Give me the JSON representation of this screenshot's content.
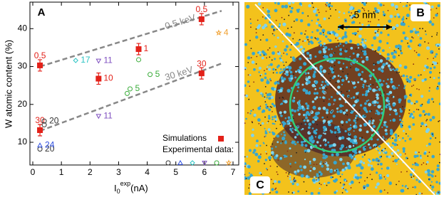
{
  "chart_data": {
    "type": "scatter",
    "panel_label": "A",
    "ylabel": "W atomic content (%)",
    "xlabel": {
      "base": "I",
      "sub": "0",
      "sup": "exp",
      "unit": "(nA)"
    },
    "xlim": [
      -0.1,
      7.2
    ],
    "ylim": [
      4,
      47
    ],
    "xticks": [
      0,
      1,
      2,
      3,
      4,
      5,
      6,
      7
    ],
    "yticks": [
      10,
      20,
      30,
      40
    ],
    "series": [
      {
        "name": "Simulations",
        "marker": "square",
        "filled": true,
        "color": "#e32119",
        "x": [
          0.25,
          0.25,
          2.3,
          3.7,
          5.9,
          5.9
        ],
        "y": [
          30.3,
          13.2,
          26.8,
          34.6,
          42.5,
          28.2
        ],
        "errors": [
          1.5,
          1.5,
          1.5,
          1.5,
          1.5,
          1.5
        ],
        "point_labels": [
          "0.5",
          "30",
          "10",
          "1",
          "0.5",
          "30"
        ]
      },
      {
        "marker": "circle",
        "color": "#333333",
        "x": [
          0.4,
          0.4,
          0.25
        ],
        "y": [
          15.6,
          14.6,
          8.2
        ],
        "point_labels": [
          "20",
          null,
          "20"
        ]
      },
      {
        "marker": "triangle-up",
        "color": "#2f4fe0",
        "x": [
          0.25
        ],
        "y": [
          9.2
        ],
        "point_labels": [
          "24"
        ]
      },
      {
        "marker": "diamond",
        "color": "#2cc4c4",
        "x": [
          1.5
        ],
        "y": [
          31.6
        ],
        "point_labels": [
          "17"
        ]
      },
      {
        "marker": "triangle-down",
        "color": "#7e4fc0",
        "x": [
          2.3,
          2.3
        ],
        "y": [
          31.5,
          16.9
        ],
        "point_labels": [
          "11",
          "11"
        ]
      },
      {
        "marker": "circle",
        "color": "#3aac3a",
        "x": [
          3.7,
          4.1,
          3.3,
          3.4
        ],
        "y": [
          31.8,
          27.9,
          22.9,
          24.1
        ],
        "point_labels": [
          null,
          "5",
          null,
          "5"
        ]
      },
      {
        "marker": "star",
        "color": "#f0a030",
        "x": [
          6.5
        ],
        "y": [
          38.9
        ],
        "point_labels": [
          "4"
        ]
      }
    ],
    "fit_lines": [
      {
        "label": "0.5 keV",
        "x": [
          0.25,
          6.6
        ],
        "y": [
          30,
          44.7
        ]
      },
      {
        "label": "30 keV",
        "x": [
          0.25,
          6.6
        ],
        "y": [
          13,
          30.8
        ]
      }
    ],
    "legend_title": "Experimental data:"
  },
  "image": {
    "labels": [
      "B",
      "C"
    ],
    "scale_bar": "5 nm"
  }
}
